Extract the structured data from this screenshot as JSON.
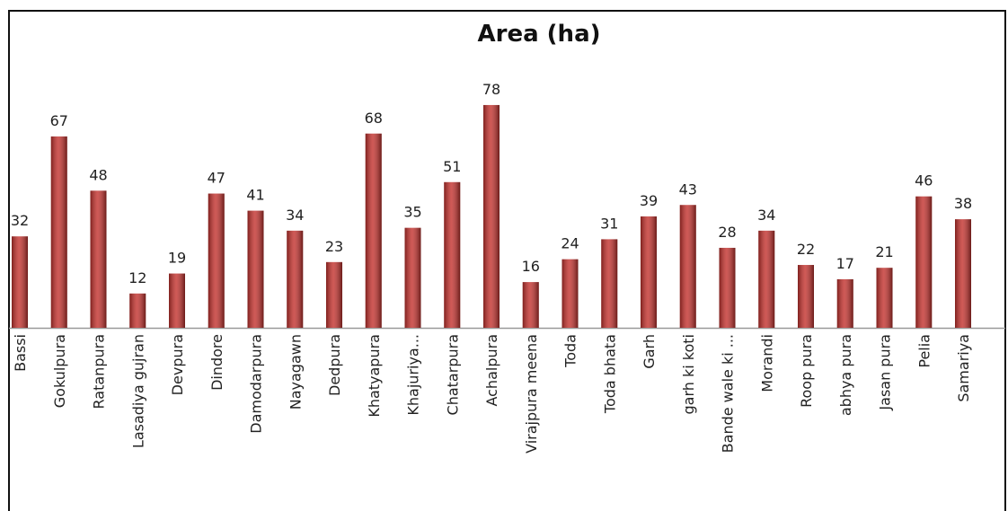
{
  "chart_data": {
    "type": "bar",
    "title": "Area (ha)",
    "categories": [
      "Bassi",
      "Gokulpura",
      "Ratanpura",
      "Lasadiya gujran",
      "Devpura",
      "Dindore",
      "Damodarpura",
      "Nayagawn",
      "Dedpura",
      "Khatyapura",
      "Khajuriya...",
      "Chatarpura",
      "Achalpura",
      "Virajpura meena",
      "Toda",
      "Toda bhata",
      "Garh",
      "garh ki koti",
      "Bande wale ki ...",
      "Morandi",
      "Roop pura",
      "abhya pura",
      "Jasan pura",
      "Pelia",
      "Samariya"
    ],
    "values": [
      32,
      67,
      48,
      12,
      19,
      47,
      41,
      34,
      23,
      68,
      35,
      51,
      78,
      16,
      24,
      31,
      39,
      43,
      28,
      34,
      22,
      17,
      21,
      46,
      38
    ],
    "color": "#c3302c"
  }
}
